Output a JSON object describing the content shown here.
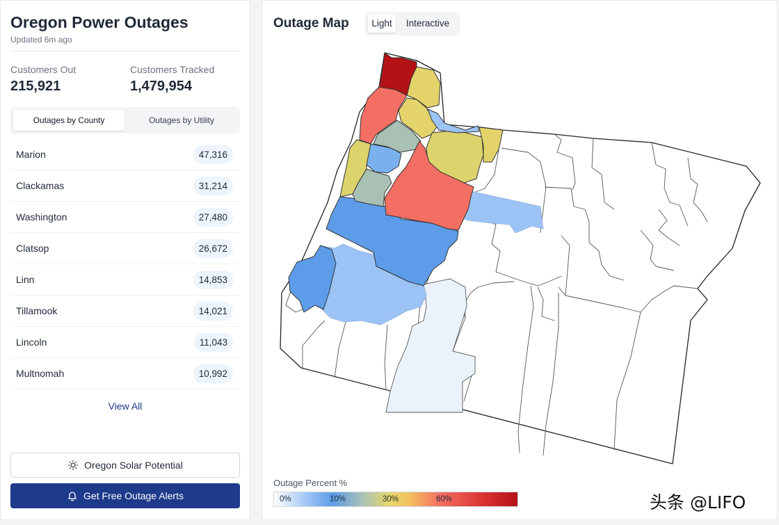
{
  "sidebar": {
    "title": "Oregon Power Outages",
    "updated": "Updated 6m ago",
    "stats": [
      {
        "label": "Customers Out",
        "value": "215,921"
      },
      {
        "label": "Customers Tracked",
        "value": "1,479,954"
      }
    ],
    "tabs": [
      {
        "label": "Outages by County",
        "active": true
      },
      {
        "label": "Outages by Utility",
        "active": false
      }
    ],
    "rows": [
      {
        "name": "Marion",
        "count": "47,316"
      },
      {
        "name": "Clackamas",
        "count": "31,214"
      },
      {
        "name": "Washington",
        "count": "27,480"
      },
      {
        "name": "Clatsop",
        "count": "26,672"
      },
      {
        "name": "Linn",
        "count": "14,853"
      },
      {
        "name": "Tillamook",
        "count": "14,021"
      },
      {
        "name": "Lincoln",
        "count": "11,043"
      },
      {
        "name": "Multnomah",
        "count": "10,992"
      }
    ],
    "view_all": "View All",
    "solar_button": {
      "label": "Oregon Solar Potential",
      "icon": "sun-icon"
    },
    "alert_button": {
      "label": "Get Free Outage Alerts",
      "icon": "bell-icon"
    }
  },
  "map": {
    "title": "Outage Map",
    "view_options": [
      {
        "label": "Light",
        "active": true
      },
      {
        "label": "Interactive",
        "active": false
      }
    ],
    "legend": {
      "title": "Outage Percent %",
      "ticks": [
        "0%",
        "10%",
        "30%",
        "60%"
      ]
    }
  },
  "colors": {
    "accent": "#1e3a8a",
    "high": "#b31217",
    "red": "#f46f63",
    "yellow": "#dcd36c",
    "sage": "#a9c0b5",
    "blue": "#5d9ce8",
    "light_blue": "#9cc3f5",
    "pale_blue": "#eaf3fc"
  },
  "watermark": "头条 @LIFO"
}
